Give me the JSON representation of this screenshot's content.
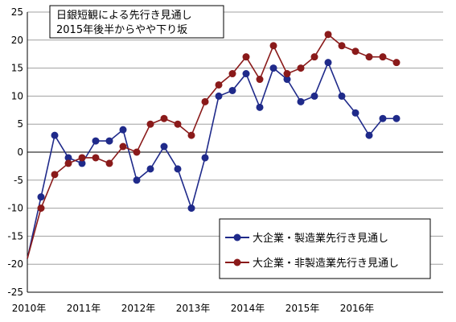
{
  "chart_data": {
    "type": "line",
    "title_lines": [
      "日銀短観による先行き見通し",
      "2015年後半からやや下り坂"
    ],
    "xlabel": "",
    "ylabel": "",
    "ylim": [
      -25,
      25
    ],
    "yticks": [
      25,
      20,
      15,
      10,
      5,
      0,
      -5,
      -10,
      -15,
      -20,
      -25
    ],
    "x_tick_labels": [
      "2010年",
      "2011年",
      "2012年",
      "2013年",
      "2014年",
      "2015年",
      "2016年"
    ],
    "grid": true,
    "legend_position": "bottom-right",
    "series": [
      {
        "name": "大企業・製造業先行き見通し",
        "color": "#1f2a8a",
        "values": [
          -19,
          -8,
          3,
          -1,
          -2,
          2,
          2,
          4,
          -5,
          -3,
          1,
          -3,
          -10,
          -1,
          10,
          11,
          14,
          8,
          15,
          13,
          9,
          10,
          16,
          10,
          7,
          3,
          6,
          6
        ]
      },
      {
        "name": "大企業・非製造業先行き見通し",
        "color": "#8a1a1a",
        "values": [
          -19,
          -10,
          -4,
          -2,
          -1,
          -1,
          -2,
          1,
          0,
          5,
          6,
          5,
          3,
          9,
          12,
          14,
          17,
          13,
          19,
          14,
          15,
          17,
          21,
          19,
          18,
          17,
          17,
          16
        ]
      }
    ]
  }
}
